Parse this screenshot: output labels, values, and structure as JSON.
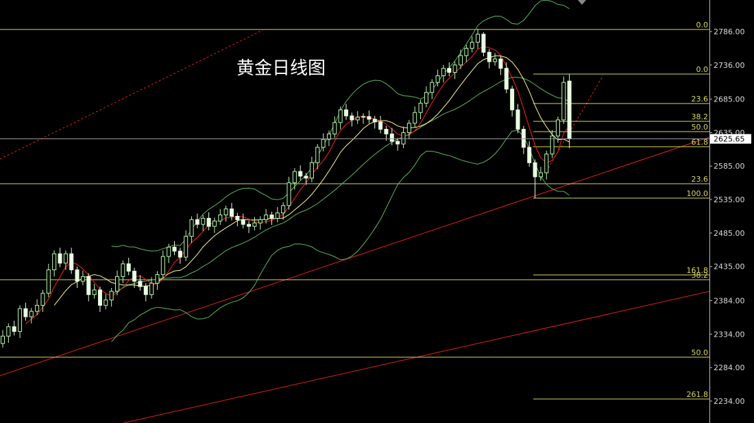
{
  "chart_data": {
    "type": "candlestick",
    "title": "黄金日线图",
    "up_color": "#b8ffb0",
    "down_color": "#e8ffe0",
    "open": [
      2320,
      2331,
      2345,
      2338,
      2372,
      2360,
      2368,
      2377,
      2395,
      2430,
      2454,
      2440,
      2454,
      2430,
      2413,
      2420,
      2393,
      2400,
      2377,
      2385,
      2398,
      2420,
      2439,
      2428,
      2413,
      2405,
      2393,
      2410,
      2423,
      2450,
      2464,
      2458,
      2449,
      2480,
      2505,
      2498,
      2507,
      2495,
      2503,
      2512,
      2521,
      2510,
      2505,
      2498,
      2495,
      2500,
      2505,
      2512,
      2507,
      2515,
      2526,
      2560,
      2577,
      2570,
      2567,
      2590,
      2613,
      2625,
      2633,
      2650,
      2669,
      2660,
      2654,
      2658,
      2659,
      2655,
      2651,
      2640,
      2633,
      2622,
      2618,
      2635,
      2649,
      2665,
      2679,
      2695,
      2710,
      2720,
      2731,
      2725,
      2736,
      2750,
      2761,
      2770,
      2782,
      2755,
      2741,
      2745,
      2731,
      2700,
      2669,
      2640,
      2613,
      2590,
      2569,
      2575,
      2603,
      2630,
      2654,
      2712
    ],
    "high": [
      2340,
      2350,
      2354,
      2377,
      2381,
      2373,
      2386,
      2400,
      2439,
      2459,
      2463,
      2459,
      2463,
      2435,
      2429,
      2425,
      2409,
      2405,
      2394,
      2403,
      2429,
      2444,
      2448,
      2433,
      2422,
      2410,
      2419,
      2428,
      2459,
      2469,
      2473,
      2463,
      2489,
      2510,
      2514,
      2512,
      2516,
      2508,
      2521,
      2526,
      2530,
      2515,
      2514,
      2503,
      2509,
      2510,
      2521,
      2517,
      2524,
      2531,
      2569,
      2582,
      2586,
      2575,
      2599,
      2618,
      2634,
      2638,
      2659,
      2674,
      2678,
      2665,
      2667,
      2664,
      2668,
      2660,
      2660,
      2645,
      2642,
      2627,
      2644,
      2654,
      2674,
      2684,
      2704,
      2715,
      2729,
      2736,
      2740,
      2741,
      2759,
      2766,
      2779,
      2790,
      2785,
      2760,
      2754,
      2750,
      2740,
      2705,
      2678,
      2645,
      2622,
      2595,
      2584,
      2608,
      2639,
      2659,
      2719,
      2722
    ],
    "low": [
      2314,
      2321,
      2332,
      2328,
      2354,
      2350,
      2362,
      2367,
      2389,
      2420,
      2434,
      2430,
      2424,
      2403,
      2407,
      2383,
      2387,
      2367,
      2371,
      2375,
      2392,
      2410,
      2422,
      2403,
      2399,
      2383,
      2387,
      2400,
      2417,
      2440,
      2452,
      2439,
      2443,
      2470,
      2492,
      2488,
      2489,
      2485,
      2497,
      2502,
      2504,
      2495,
      2492,
      2485,
      2489,
      2490,
      2499,
      2497,
      2501,
      2505,
      2520,
      2550,
      2564,
      2557,
      2561,
      2580,
      2607,
      2615,
      2627,
      2640,
      2654,
      2644,
      2648,
      2648,
      2649,
      2641,
      2634,
      2623,
      2616,
      2608,
      2612,
      2625,
      2643,
      2655,
      2673,
      2685,
      2704,
      2710,
      2719,
      2715,
      2730,
      2740,
      2755,
      2760,
      2749,
      2731,
      2735,
      2721,
      2694,
      2659,
      2634,
      2603,
      2584,
      2537,
      2563,
      2565,
      2597,
      2620,
      2648,
      2612
    ],
    "close": [
      2331,
      2345,
      2338,
      2372,
      2360,
      2368,
      2377,
      2395,
      2430,
      2454,
      2440,
      2454,
      2430,
      2413,
      2420,
      2393,
      2400,
      2377,
      2385,
      2398,
      2420,
      2439,
      2428,
      2413,
      2405,
      2393,
      2410,
      2423,
      2450,
      2464,
      2458,
      2449,
      2480,
      2505,
      2498,
      2507,
      2495,
      2503,
      2512,
      2521,
      2510,
      2505,
      2498,
      2495,
      2500,
      2505,
      2512,
      2507,
      2515,
      2526,
      2560,
      2577,
      2570,
      2567,
      2590,
      2613,
      2625,
      2633,
      2650,
      2669,
      2660,
      2654,
      2658,
      2659,
      2655,
      2651,
      2640,
      2633,
      2622,
      2618,
      2635,
      2649,
      2665,
      2679,
      2695,
      2710,
      2720,
      2731,
      2725,
      2736,
      2750,
      2761,
      2770,
      2782,
      2755,
      2741,
      2745,
      2731,
      2700,
      2669,
      2640,
      2613,
      2590,
      2569,
      2575,
      2603,
      2630,
      2654,
      2710,
      2625.65
    ],
    "ylim": [
      2201.2,
      2833.1
    ],
    "yticks": [
      {
        "value": 2786,
        "label": "2786.00"
      },
      {
        "value": 2736,
        "label": "2736.00"
      },
      {
        "value": 2685,
        "label": "2685.00"
      },
      {
        "value": 2635,
        "label": "2635.00"
      },
      {
        "value": 2585,
        "label": "2585.00"
      },
      {
        "value": 2535,
        "label": "2535.00"
      },
      {
        "value": 2485,
        "label": "2485.00"
      },
      {
        "value": 2435,
        "label": "2435.00"
      },
      {
        "value": 2384,
        "label": "2384.00"
      },
      {
        "value": 2334,
        "label": "2334.00"
      },
      {
        "value": 2284,
        "label": "2284.00"
      },
      {
        "value": 2234,
        "label": "2234.00"
      }
    ],
    "current_price": {
      "value": 2625.65,
      "label": "2625.65"
    },
    "fib_levels": [
      {
        "value": 2789.1,
        "label": "0.0",
        "span": "full"
      },
      {
        "value": 2558.6,
        "label": "23.6",
        "span": "full"
      },
      {
        "value": 2415.2,
        "label": "38.2",
        "span": "full"
      },
      {
        "value": 2299.5,
        "label": "50.0",
        "span": "full"
      },
      {
        "value": 2722.5,
        "label": "0.0",
        "span": "short"
      },
      {
        "value": 2678.5,
        "label": "23.6",
        "span": "short"
      },
      {
        "value": 2651.8,
        "label": "38.2",
        "span": "short"
      },
      {
        "value": 2636.5,
        "label": "50.0",
        "span": "short"
      },
      {
        "value": 2613.9,
        "label": "61.8",
        "span": "short"
      },
      {
        "value": 2537.1,
        "label": "100.0",
        "span": "short"
      },
      {
        "value": 2422.4,
        "label": "161.8",
        "span": "short"
      },
      {
        "value": 2237.0,
        "label": "261.8",
        "span": "short"
      }
    ]
  }
}
